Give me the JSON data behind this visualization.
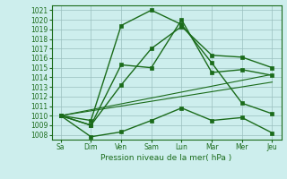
{
  "title": "",
  "xlabel": "Pression niveau de la mer( hPa )",
  "x_labels": [
    "Sa",
    "Dim",
    "Ven",
    "Sam",
    "Lun",
    "Mar",
    "Mer",
    "Jeu"
  ],
  "x_ticks": [
    0,
    1,
    2,
    3,
    4,
    5,
    6,
    7
  ],
  "ylim": [
    1007.5,
    1021.5
  ],
  "yticks": [
    1008,
    1009,
    1010,
    1011,
    1012,
    1013,
    1014,
    1015,
    1016,
    1017,
    1018,
    1019,
    1020,
    1021
  ],
  "series": [
    {
      "name": "s1_mid",
      "x": [
        0,
        1,
        2,
        3,
        4,
        5,
        6,
        7
      ],
      "y": [
        1010.0,
        1009.0,
        1015.3,
        1015.0,
        1020.0,
        1014.5,
        1014.8,
        1014.2
      ],
      "marker": "s",
      "markersize": 2.5,
      "linewidth": 1.0
    },
    {
      "name": "s2_upper",
      "x": [
        0,
        1,
        2,
        3,
        4,
        5,
        6,
        7
      ],
      "y": [
        1010.0,
        1009.0,
        1013.2,
        1017.0,
        1019.3,
        1016.3,
        1016.1,
        1015.0
      ],
      "marker": "s",
      "markersize": 2.5,
      "linewidth": 1.0
    },
    {
      "name": "s3_peak",
      "x": [
        0,
        1,
        2,
        3,
        4,
        5,
        6,
        7
      ],
      "y": [
        1010.0,
        1009.5,
        1019.4,
        1021.0,
        1019.5,
        1015.5,
        1011.3,
        1010.2
      ],
      "marker": "s",
      "markersize": 2.5,
      "linewidth": 1.0
    },
    {
      "name": "s4_low",
      "x": [
        0,
        1,
        2,
        3,
        4,
        5,
        6,
        7
      ],
      "y": [
        1010.0,
        1007.8,
        1008.3,
        1009.5,
        1010.8,
        1009.5,
        1009.8,
        1008.2
      ],
      "marker": "s",
      "markersize": 2.5,
      "linewidth": 1.0
    },
    {
      "name": "s5_trend1",
      "x": [
        0,
        7
      ],
      "y": [
        1010.0,
        1013.5
      ],
      "marker": null,
      "markersize": 0,
      "linewidth": 0.8
    },
    {
      "name": "s6_trend2",
      "x": [
        0,
        7
      ],
      "y": [
        1010.0,
        1014.3
      ],
      "marker": null,
      "markersize": 0,
      "linewidth": 0.8
    }
  ],
  "color": "#1a6b1a",
  "background_color": "#cdeeed",
  "grid_color": "#9abfbe",
  "text_color": "#1a6b1a",
  "spine_color": "#1a6b1a",
  "ylabel_fontsize": 5.5,
  "xlabel_fontsize": 6.5,
  "xticklabel_fontsize": 5.5
}
